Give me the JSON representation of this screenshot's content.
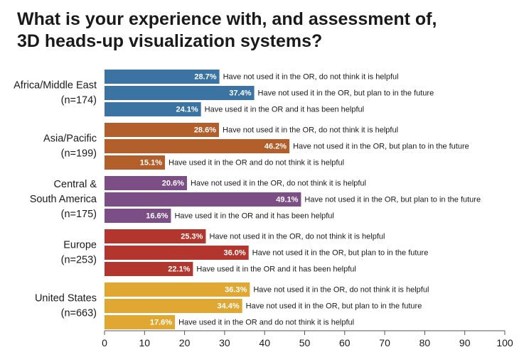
{
  "chart_data": {
    "type": "bar",
    "orientation": "horizontal",
    "title": "What is your experience with, and assessment of, 3D heads-up visualization systems?",
    "title_lines": [
      "What is your experience with, and assessment of,",
      "3D heads-up visualization systems?"
    ],
    "xlim": [
      0,
      100
    ],
    "xticks": [
      0,
      10,
      20,
      30,
      40,
      50,
      60,
      70,
      80,
      90,
      100
    ],
    "grid": false,
    "groups": [
      {
        "name": "Africa/Middle East",
        "sample": "(n=174)",
        "color": "#3b73a3",
        "bars": [
          {
            "value": 28.7,
            "label": "28.7%",
            "text": "Have not used it in the OR, do not think it is helpful"
          },
          {
            "value": 37.4,
            "label": "37.4%",
            "text": "Have not used it in the OR, but plan to in the future"
          },
          {
            "value": 24.1,
            "label": "24.1%",
            "text": "Have used it in the OR and it has been helpful"
          }
        ]
      },
      {
        "name": "Asia/Pacific",
        "sample": "(n=199)",
        "color": "#b35f2b",
        "bars": [
          {
            "value": 28.6,
            "label": "28.6%",
            "text": "Have not used it in the OR, do not think it is helpful"
          },
          {
            "value": 46.2,
            "label": "46.2%",
            "text": "Have not used it in the OR, but plan to in the future"
          },
          {
            "value": 15.1,
            "label": "15.1%",
            "text": "Have used it in the OR and do not think it is helpful"
          }
        ]
      },
      {
        "name": "Central & South America",
        "name_lines": [
          "Central &",
          "South America"
        ],
        "sample": "(n=175)",
        "color": "#7b4f85",
        "bars": [
          {
            "value": 20.6,
            "label": "20.6%",
            "text": "Have not used it in the OR, do not think it is helpful"
          },
          {
            "value": 49.1,
            "label": "49.1%",
            "text": "Have not used it in the OR, but plan to in the future"
          },
          {
            "value": 16.6,
            "label": "16.6%",
            "text": "Have used it in the OR and it has been helpful"
          }
        ]
      },
      {
        "name": "Europe",
        "sample": "(n=253)",
        "color": "#b3362e",
        "bars": [
          {
            "value": 25.3,
            "label": "25.3%",
            "text": "Have not used it in the OR, do not think it is helpful"
          },
          {
            "value": 36.0,
            "label": "36.0%",
            "text": "Have not used it in the OR, but plan to in the future"
          },
          {
            "value": 22.1,
            "label": "22.1%",
            "text": "Have used it in the OR and it has been helpful"
          }
        ]
      },
      {
        "name": "United States",
        "sample": "(n=663)",
        "color": "#e0a832",
        "bars": [
          {
            "value": 36.3,
            "label": "36.3%",
            "text": "Have not used it in the OR, do not think it is helpful"
          },
          {
            "value": 34.4,
            "label": "34.4%",
            "text": "Have not used it in the OR, but plan to in the future"
          },
          {
            "value": 17.6,
            "label": "17.6%",
            "text": "Have used it in the OR and do not think it is helpful"
          }
        ]
      }
    ]
  }
}
